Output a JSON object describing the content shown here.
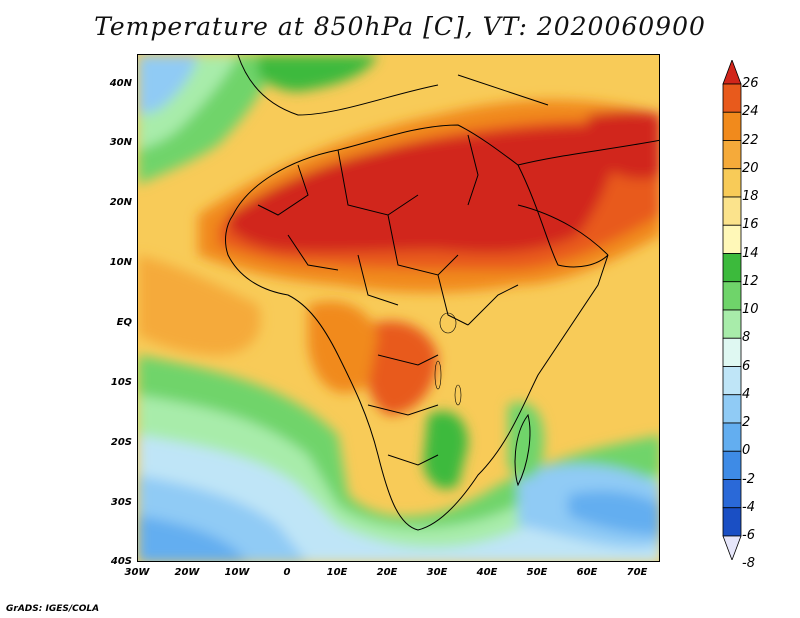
{
  "title": "Temperature at 850hPa [C], VT: 2020060900",
  "credit": "GrADS: IGES/COLA",
  "lat_labels": [
    "40N",
    "30N",
    "20N",
    "10N",
    "EQ",
    "10S",
    "20S",
    "30S",
    "40S"
  ],
  "lon_labels": [
    "30W",
    "20W",
    "10W",
    "0",
    "10E",
    "20E",
    "30E",
    "40E",
    "50E",
    "60E",
    "70E"
  ],
  "colorbar": {
    "labels": [
      "26",
      "24",
      "22",
      "20",
      "18",
      "16",
      "14",
      "12",
      "10",
      "8",
      "6",
      "4",
      "2",
      "0",
      "-2",
      "-4",
      "-6",
      "-8"
    ],
    "colors": [
      "#d1261b",
      "#e85a1c",
      "#f18a1c",
      "#f5aa3a",
      "#f8cb58",
      "#fbe38c",
      "#fff8b8",
      "#3cba3c",
      "#6fd46a",
      "#a8ecaa",
      "#dff8f2",
      "#bfe5f7",
      "#90cbf5",
      "#63aef0",
      "#3e8be6",
      "#2a69d8",
      "#1a4fc4",
      "#1a2a9a"
    ]
  },
  "map": {
    "region": "Africa",
    "lon_range": [
      "30W",
      "75E"
    ],
    "lat_range": [
      "40S",
      "45N"
    ]
  }
}
